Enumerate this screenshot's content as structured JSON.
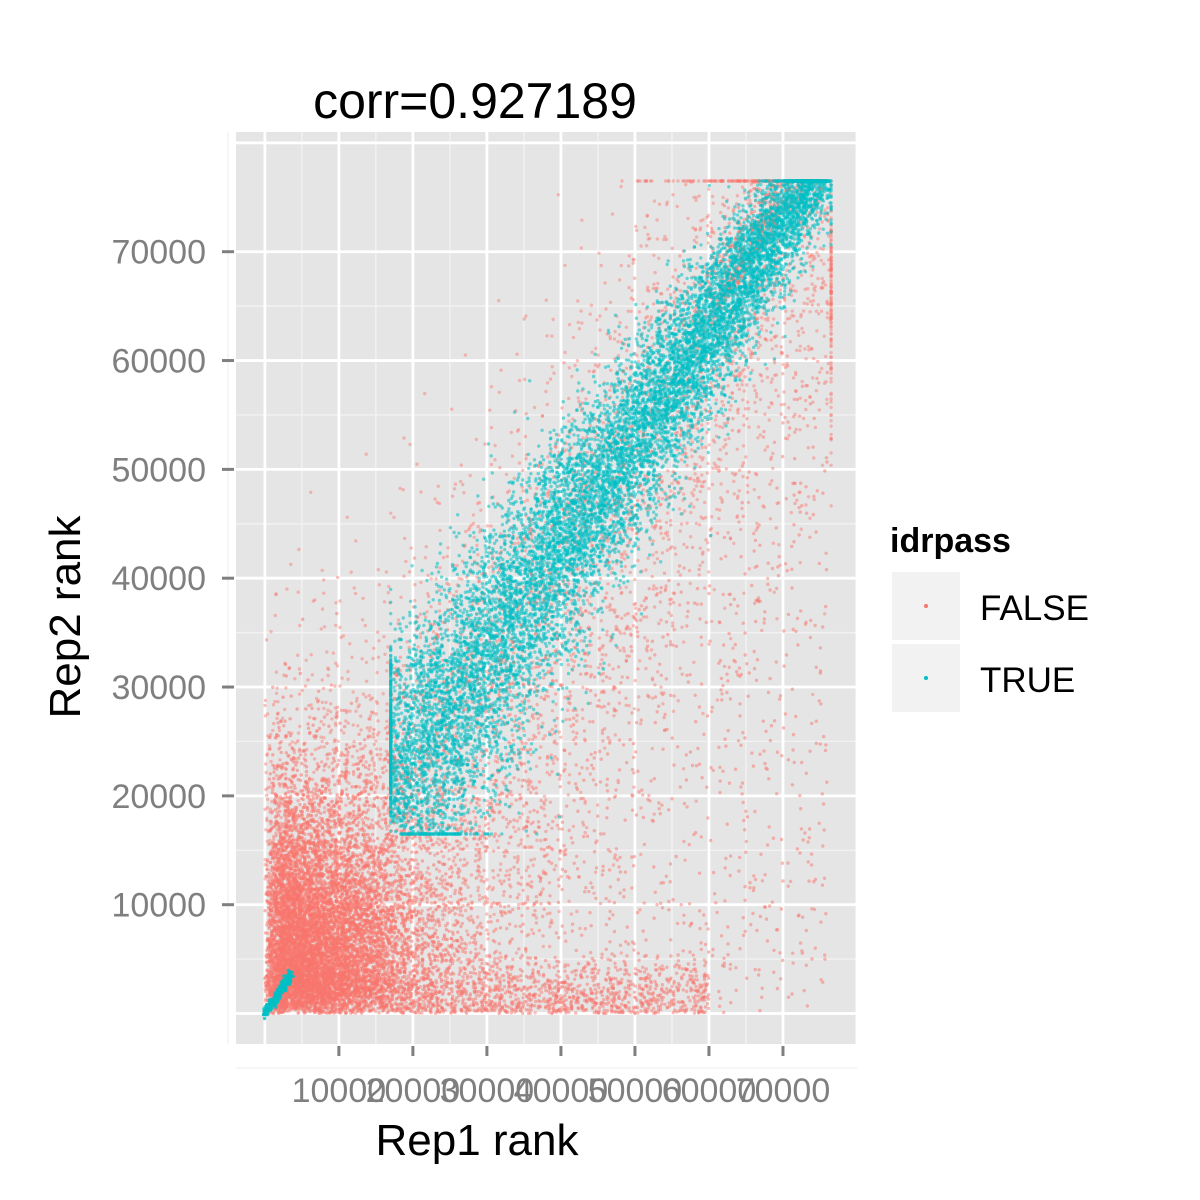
{
  "chart_data": {
    "type": "scatter",
    "title": "corr=0.927189",
    "xlabel": "Rep1 rank",
    "ylabel": "Rep2 rank",
    "xlim": [
      -3900,
      80000
    ],
    "ylim": [
      -2800,
      81000
    ],
    "x_ticks": [
      10000,
      20000,
      30000,
      40000,
      50000,
      60000,
      70000
    ],
    "y_ticks": [
      10000,
      20000,
      30000,
      40000,
      50000,
      60000,
      70000
    ],
    "x_tick_labels": [
      "10000",
      "20000",
      "30000",
      "40000",
      "50000",
      "60000",
      "70000"
    ],
    "y_tick_labels": [
      "10000",
      "20000",
      "30000",
      "40000",
      "50000",
      "60000",
      "70000"
    ],
    "grid": true,
    "background": "#e5e5e5",
    "legend": {
      "title": "idrpass",
      "position": "right",
      "entries": [
        {
          "label": "FALSE",
          "color": "#f8766d"
        },
        {
          "label": "TRUE",
          "color": "#00bfc4"
        }
      ]
    },
    "series": [
      {
        "name": "FALSE",
        "color": "#f8766d",
        "description_points": [
          [
            0,
            0
          ],
          [
            5000,
            3000
          ],
          [
            10000,
            12000
          ],
          [
            15000,
            8000
          ],
          [
            20000,
            20000
          ],
          [
            25000,
            15000
          ],
          [
            30000,
            22000
          ],
          [
            40000,
            30000
          ],
          [
            50000,
            20000
          ],
          [
            60000,
            35000
          ],
          [
            70000,
            60000
          ],
          [
            75000,
            72000
          ],
          [
            65000,
            76000
          ],
          [
            55000,
            10000
          ],
          [
            45000,
            5000
          ],
          [
            8000,
            30000
          ],
          [
            15000,
            40000
          ]
        ]
      },
      {
        "name": "TRUE",
        "color": "#00bfc4",
        "description_points": [
          [
            0,
            0
          ],
          [
            1500,
            1500
          ],
          [
            3000,
            3000
          ],
          [
            17000,
            17000
          ],
          [
            20000,
            22000
          ],
          [
            25000,
            28000
          ],
          [
            30000,
            32000
          ],
          [
            35000,
            40000
          ],
          [
            40000,
            43000
          ],
          [
            45000,
            48000
          ],
          [
            50000,
            52000
          ],
          [
            55000,
            57000
          ],
          [
            60000,
            62000
          ],
          [
            65000,
            66000
          ],
          [
            70000,
            71000
          ],
          [
            75000,
            76000
          ]
        ]
      }
    ]
  }
}
